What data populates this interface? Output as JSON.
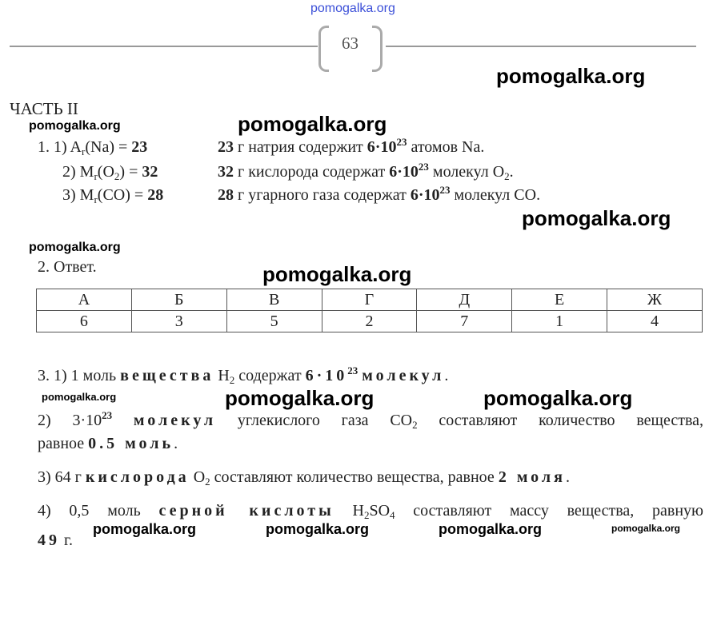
{
  "header": {
    "page_number": "63",
    "top_watermark": "pomogalka.org"
  },
  "watermarks": [
    "pomogalka.org",
    "pomogalka.org",
    "pomogalka.org",
    "pomogalka.org",
    "pomogalka.org",
    "pomogalka.org",
    "pomogalka.org",
    "pomogalka.org",
    "pomogalka.org",
    "pomogalka.org",
    "pomogalka.org",
    "pomogalka.org",
    "pomogalka.org",
    "pomogalka.org"
  ],
  "section_title": "ЧАСТЬ II",
  "task1": [
    {
      "left": [
        [
          "n",
          "1. 1) A"
        ],
        [
          "s",
          "r"
        ],
        [
          "n",
          "(Na) = "
        ],
        [
          "b",
          "23"
        ]
      ],
      "right": [
        [
          "b",
          "23"
        ],
        [
          "n",
          " г натрия содержит "
        ],
        [
          "b",
          "6·10"
        ],
        [
          "p",
          "23"
        ],
        [
          "n",
          " атомов Na."
        ]
      ]
    },
    {
      "left": [
        [
          "n",
          "2)  M"
        ],
        [
          "s",
          "r"
        ],
        [
          "n",
          "(O"
        ],
        [
          "s",
          "2"
        ],
        [
          "n",
          ") = "
        ],
        [
          "b",
          "32"
        ]
      ],
      "right": [
        [
          "b",
          "32"
        ],
        [
          "n",
          " г кислорода содержат "
        ],
        [
          "b",
          "6·10"
        ],
        [
          "p",
          "23"
        ],
        [
          "n",
          " молекул O"
        ],
        [
          "s",
          "2"
        ],
        [
          "n",
          "."
        ]
      ]
    },
    {
      "left": [
        [
          "n",
          "3)  M"
        ],
        [
          "s",
          "r"
        ],
        [
          "n",
          "(CO) = "
        ],
        [
          "b",
          "28"
        ]
      ],
      "right": [
        [
          "b",
          "28"
        ],
        [
          "n",
          " г угарного газа содержат "
        ],
        [
          "b",
          "6·10"
        ],
        [
          "p",
          "23"
        ],
        [
          "n",
          " молекул CO."
        ]
      ]
    }
  ],
  "task2": {
    "title": "2. Ответ.",
    "headers": [
      "А",
      "Б",
      "В",
      "Г",
      "Д",
      "Е",
      "Ж"
    ],
    "values": [
      "6",
      "3",
      "5",
      "2",
      "7",
      "1",
      "4"
    ]
  },
  "task3": [
    [
      [
        "n",
        "3. 1) 1 моль "
      ],
      [
        "w",
        "вещества"
      ],
      [
        "n",
        " H"
      ],
      [
        "s",
        "2"
      ],
      [
        "n",
        " содержат "
      ],
      [
        "w",
        "6·10"
      ],
      [
        "p",
        "23"
      ],
      [
        "n",
        "  "
      ],
      [
        "w",
        "молекул"
      ],
      [
        "n",
        "."
      ]
    ],
    [
      [
        "n",
        "2) 3·10"
      ],
      [
        "p",
        "23"
      ],
      [
        "n",
        " "
      ],
      [
        "w",
        "молекул"
      ],
      [
        "n",
        " углекислого газа CO"
      ],
      [
        "s",
        "2"
      ],
      [
        "n",
        " составляют количество вещества,"
      ]
    ],
    [
      [
        "n",
        "равное "
      ],
      [
        "w",
        "0.5 моль"
      ],
      [
        "n",
        "."
      ]
    ],
    [
      [
        "n",
        "3) 64 г "
      ],
      [
        "w",
        "кислорода"
      ],
      [
        "n",
        " O"
      ],
      [
        "s",
        "2"
      ],
      [
        "n",
        " составляют количество вещества, равное "
      ],
      [
        "w",
        "2 моля"
      ],
      [
        "n",
        "."
      ]
    ],
    [
      [
        "n",
        "4) 0,5 моль "
      ],
      [
        "w",
        "серной кислоты"
      ],
      [
        "n",
        " H"
      ],
      [
        "s",
        "2"
      ],
      [
        "n",
        "SO"
      ],
      [
        "s",
        "4"
      ],
      [
        "n",
        " составляют массу вещества, равную"
      ]
    ],
    [
      [
        "w",
        "49"
      ],
      [
        "n",
        " г."
      ]
    ]
  ],
  "colors": {
    "top_watermark": "#3b4fd8",
    "rule": "#999999"
  }
}
